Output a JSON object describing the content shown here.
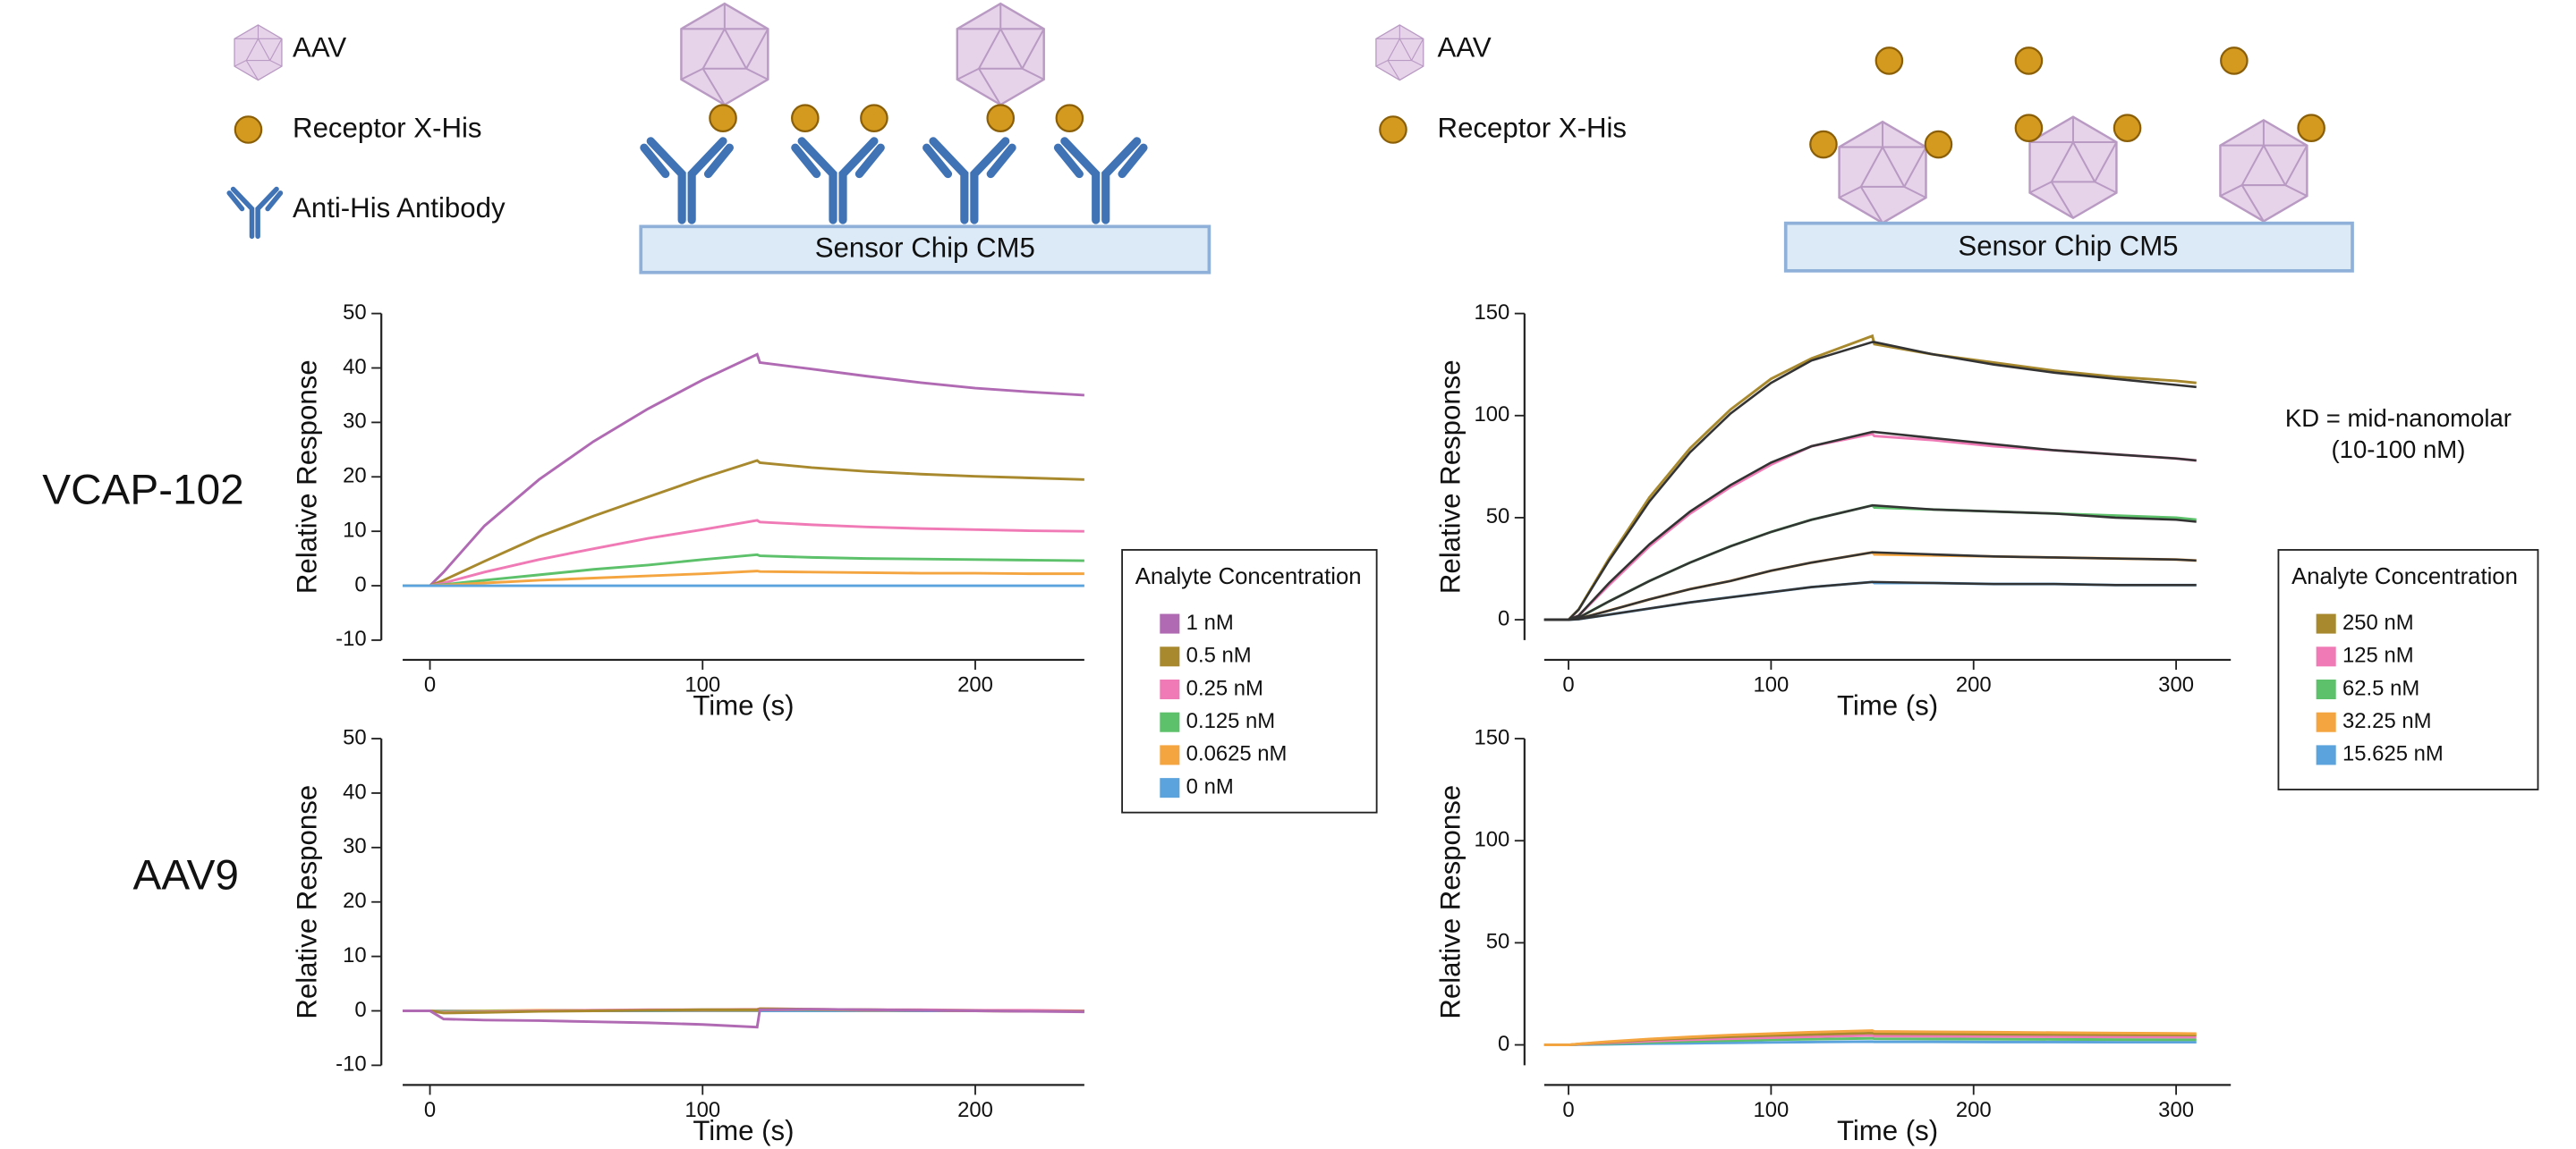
{
  "diagrams": [
    {
      "legend": [
        "AAV",
        "Receptor X-His",
        "Anti-His Antibody"
      ],
      "chip": "Sensor Chip CM5"
    },
    {
      "legend": [
        "AAV",
        "Receptor X-His"
      ],
      "chip": "Sensor Chip CM5"
    }
  ],
  "row_labels": [
    "VCAP-102",
    "AAV9"
  ],
  "chart_data": [
    {
      "type": "line",
      "xlabel": "Time (s)",
      "ylabel": "Relative Response",
      "xlim": [
        -10,
        240
      ],
      "ylim": [
        -10,
        50
      ],
      "xticks": [
        0,
        100,
        200
      ],
      "yticks": [
        -10,
        0,
        10,
        20,
        30,
        40,
        50
      ],
      "legend": "right",
      "legend_title": "Analyte Concentration",
      "x": [
        -10,
        0,
        5,
        20,
        40,
        60,
        80,
        100,
        120,
        121,
        140,
        160,
        180,
        200,
        220,
        240
      ],
      "series": [
        {
          "name": "1 nM",
          "color": "#b06ab3",
          "values": [
            0,
            0,
            2.5,
            11,
            19.5,
            26.5,
            32.5,
            37.8,
            42.5,
            41,
            39.8,
            38.5,
            37.3,
            36.3,
            35.6,
            35
          ]
        },
        {
          "name": "0.5 nM",
          "color": "#a8892d",
          "values": [
            0,
            0,
            1,
            4.5,
            9,
            12.8,
            16.3,
            19.8,
            23,
            22.6,
            21.7,
            21,
            20.5,
            20.1,
            19.8,
            19.5
          ]
        },
        {
          "name": "0.25 nM",
          "color": "#f07ab5",
          "values": [
            0,
            0,
            0.5,
            2.5,
            4.8,
            6.8,
            8.7,
            10.3,
            12,
            11.7,
            11.2,
            10.8,
            10.5,
            10.3,
            10.1,
            10
          ]
        },
        {
          "name": "0.125 nM",
          "color": "#5cc16a",
          "values": [
            0,
            0,
            0.2,
            1,
            2,
            3,
            3.8,
            4.8,
            5.7,
            5.5,
            5.2,
            5,
            4.9,
            4.8,
            4.7,
            4.6
          ]
        },
        {
          "name": "0.0625 nM",
          "color": "#f5a540",
          "values": [
            0,
            0,
            0.1,
            0.5,
            1,
            1.4,
            1.8,
            2.2,
            2.7,
            2.6,
            2.5,
            2.4,
            2.3,
            2.3,
            2.2,
            2.2
          ]
        },
        {
          "name": "0 nM",
          "color": "#5aa3dc",
          "values": [
            0,
            0,
            0,
            0,
            0,
            0,
            0,
            0,
            0,
            0,
            0,
            0,
            0,
            0,
            0,
            0
          ]
        }
      ]
    },
    {
      "type": "line",
      "xlabel": "Time (s)",
      "ylabel": "Relative Response",
      "xlim": [
        -10,
        240
      ],
      "ylim": [
        -10,
        50
      ],
      "xticks": [
        0,
        100,
        200
      ],
      "yticks": [
        -10,
        0,
        10,
        20,
        30,
        40,
        50
      ],
      "x": [
        -10,
        0,
        5,
        20,
        40,
        60,
        80,
        100,
        120,
        121,
        140,
        160,
        180,
        200,
        220,
        240
      ],
      "series": [
        {
          "color": "#5aa3dc",
          "values": [
            0,
            0,
            0,
            0,
            0,
            0,
            0,
            0,
            0,
            0,
            0,
            0,
            0,
            0,
            0,
            0
          ]
        },
        {
          "color": "#f5a540",
          "values": [
            0,
            0,
            -0.1,
            0,
            0.1,
            0.1,
            0.1,
            0.1,
            0.1,
            0.2,
            0.2,
            0.1,
            0.1,
            0,
            0,
            0
          ]
        },
        {
          "color": "#5cc16a",
          "values": [
            0,
            0,
            -0.2,
            -0.1,
            0,
            0.1,
            0.1,
            0.2,
            0.2,
            0.3,
            0.2,
            0.2,
            0.1,
            0.1,
            0,
            0
          ]
        },
        {
          "color": "#f07ab5",
          "values": [
            0,
            0,
            -0.3,
            -0.2,
            0,
            0.1,
            0.2,
            0.2,
            0.3,
            0.4,
            0.3,
            0.2,
            0.2,
            0.1,
            0.1,
            0
          ]
        },
        {
          "color": "#a8892d",
          "values": [
            0,
            0,
            -0.4,
            -0.3,
            -0.1,
            0,
            0.1,
            0.2,
            0.2,
            0.4,
            0.3,
            0.2,
            0.1,
            0,
            -0.1,
            -0.1
          ]
        },
        {
          "color": "#b06ab3",
          "values": [
            0,
            0,
            -1.5,
            -1.7,
            -1.8,
            -2,
            -2.2,
            -2.5,
            -3,
            0.2,
            0.3,
            0.2,
            0.1,
            0,
            -0.1,
            -0.2
          ]
        }
      ]
    },
    {
      "type": "line",
      "xlabel": "Time (s)",
      "ylabel": "Relative Response",
      "xlim": [
        -12,
        327
      ],
      "ylim": [
        -10,
        150
      ],
      "xticks": [
        0,
        100,
        200,
        300
      ],
      "yticks": [
        0,
        50,
        100,
        150
      ],
      "legend": "right",
      "legend_title": "Analyte Concentration",
      "annotation": [
        "KD = mid-nanomolar",
        "(10-100 nM)"
      ],
      "fit_color": "#333333",
      "x": [
        -12,
        0,
        5,
        20,
        40,
        60,
        80,
        100,
        120,
        150,
        151,
        180,
        210,
        240,
        270,
        300,
        310
      ],
      "series": [
        {
          "name": "250 nM",
          "color": "#a8892d",
          "values": [
            0,
            0,
            5,
            30,
            60,
            84,
            103,
            118,
            128,
            139,
            135,
            130,
            126,
            122,
            119,
            117,
            116
          ],
          "fit": [
            0,
            0,
            5,
            29,
            58,
            82,
            101,
            116,
            127,
            136,
            136,
            130,
            125,
            121,
            118,
            115,
            114
          ]
        },
        {
          "name": "125 nM",
          "color": "#f07ab5",
          "values": [
            0,
            0,
            2,
            17,
            36,
            52,
            65,
            76,
            85,
            91,
            90,
            88,
            85,
            83,
            81,
            79,
            78
          ],
          "fit": [
            0,
            0,
            2,
            18,
            37,
            53,
            66,
            77,
            85,
            92,
            92,
            89,
            86,
            83,
            81,
            79,
            78
          ]
        },
        {
          "name": "62.5 nM",
          "color": "#5cc16a",
          "values": [
            0,
            0,
            1,
            9,
            19,
            28,
            36,
            43,
            49,
            56,
            55,
            54,
            53,
            52,
            51,
            50,
            49
          ],
          "fit": [
            0,
            0,
            1,
            9,
            19,
            28,
            36,
            43,
            49,
            56,
            56,
            54,
            53,
            52,
            50,
            49,
            48
          ]
        },
        {
          "name": "32.25 nM",
          "color": "#f5a540",
          "values": [
            0,
            0,
            0.5,
            4.5,
            10,
            15,
            19,
            24,
            28,
            33,
            32,
            31.5,
            31,
            30.5,
            30,
            29.5,
            29
          ],
          "fit": [
            0,
            0,
            0.5,
            4.5,
            10,
            15,
            19,
            24,
            28,
            33,
            33,
            32,
            31,
            30.5,
            30,
            29.5,
            29
          ]
        },
        {
          "name": "15.625 nM",
          "color": "#5aa3dc",
          "values": [
            0,
            0,
            0.3,
            2.5,
            5.5,
            8.5,
            11,
            13.5,
            16,
            18.5,
            18,
            18,
            17.5,
            17.5,
            17,
            17,
            17
          ],
          "fit": [
            0,
            0,
            0.3,
            2.5,
            5.5,
            8.5,
            11,
            13.5,
            16,
            18.5,
            18.5,
            18,
            17.5,
            17.5,
            17,
            17,
            17
          ]
        }
      ]
    },
    {
      "type": "line",
      "xlabel": "Time (s)",
      "ylabel": "Relative Response",
      "xlim": [
        -12,
        327
      ],
      "ylim": [
        -10,
        150
      ],
      "xticks": [
        0,
        100,
        200,
        300
      ],
      "yticks": [
        0,
        50,
        100,
        150
      ],
      "x": [
        -12,
        0,
        5,
        20,
        40,
        60,
        80,
        100,
        120,
        150,
        151,
        180,
        210,
        240,
        270,
        300,
        310
      ],
      "series": [
        {
          "color": "#5aa3dc",
          "values": [
            0,
            0,
            0.1,
            0.3,
            0.6,
            0.8,
            1,
            1.2,
            1.4,
            1.6,
            1.5,
            1.5,
            1.4,
            1.4,
            1.3,
            1.3,
            1.3
          ]
        },
        {
          "color": "#5cc16a",
          "values": [
            0,
            0,
            0.2,
            0.6,
            1.2,
            1.7,
            2.1,
            2.5,
            2.8,
            3.2,
            3,
            2.9,
            2.8,
            2.7,
            2.6,
            2.5,
            2.5
          ]
        },
        {
          "color": "#f07ab5",
          "values": [
            0,
            0,
            0.3,
            1,
            1.8,
            2.5,
            3,
            3.5,
            4,
            4.6,
            4.3,
            4.2,
            4.1,
            4,
            3.9,
            3.8,
            3.8
          ]
        },
        {
          "color": "#a8892d",
          "values": [
            0,
            0,
            0.4,
            1.4,
            2.5,
            3.3,
            4,
            4.6,
            5.1,
            5.8,
            5.5,
            5.4,
            5.2,
            5.1,
            5,
            4.9,
            4.8
          ]
        },
        {
          "color": "#f5a540",
          "values": [
            0,
            0,
            0.5,
            1.6,
            2.9,
            3.9,
            4.8,
            5.5,
            6.2,
            7,
            6.6,
            6.4,
            6.2,
            6,
            5.8,
            5.6,
            5.5
          ]
        }
      ]
    }
  ]
}
